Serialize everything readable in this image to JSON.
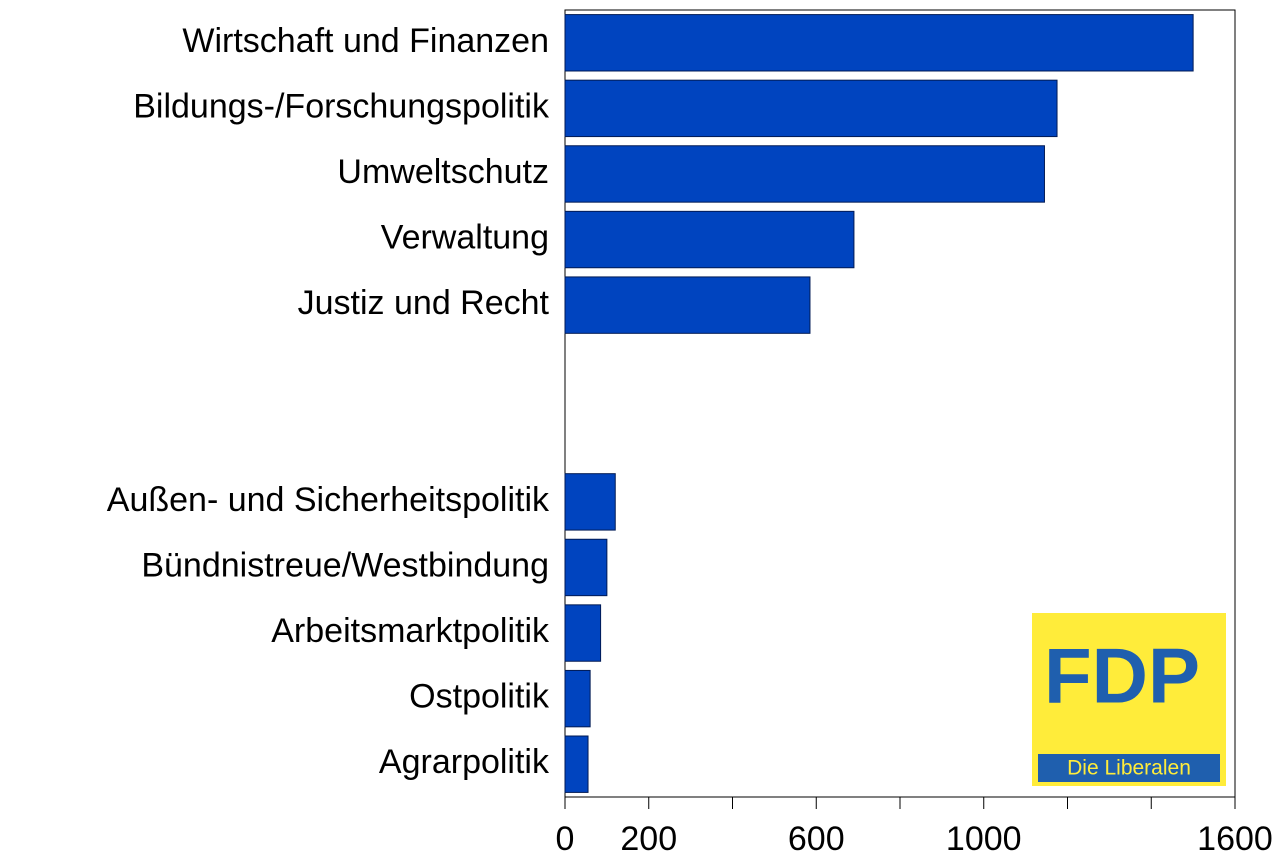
{
  "chart_data": {
    "type": "barh",
    "categories": [
      "Wirtschaft und Finanzen",
      "Bildungs-/Forschungspolitik",
      "Umweltschutz",
      "Verwaltung",
      "Justiz und Recht",
      null,
      null,
      "Außen- und Sicherheitspolitik",
      "Bündnistreue/Westbindung",
      "Arbeitsmarktpolitik",
      "Ostpolitik",
      "Agrarpolitik"
    ],
    "values": [
      1500,
      1175,
      1145,
      690,
      585,
      null,
      null,
      120,
      100,
      85,
      60,
      55
    ],
    "color": "#0044bf",
    "xlim": [
      0,
      1600
    ],
    "xticks": [
      0,
      200,
      600,
      1000,
      1600
    ],
    "xminorticks": [
      400,
      800,
      1200,
      1400
    ],
    "logo": {
      "text": "FDP",
      "subtitle": "Die Liberalen"
    }
  }
}
